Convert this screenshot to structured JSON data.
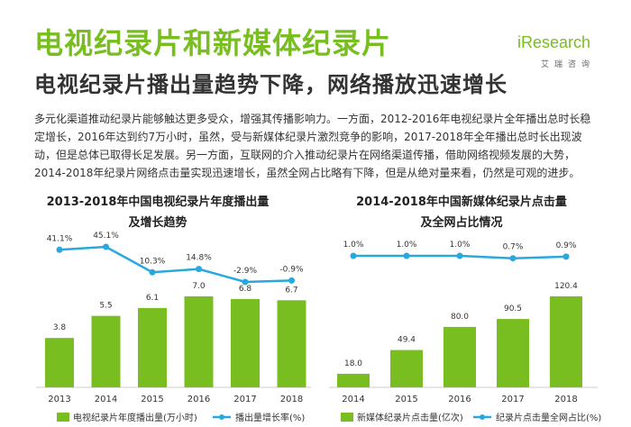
{
  "page": {
    "title": "电视纪录片和新媒体纪录片",
    "subtitle": "电视纪录片播出量趋势下降，网络播放迅速增长",
    "intro": "多元化渠道推动纪录片能够触达更多受众，增强其传播影响力。一方面，2012-2016年电视纪录片全年播出总时长稳定增长，2016年达到约7万小时，虽然，受与新媒体纪录片激烈竞争的影响，2017-2018年全年播出总时长出现波动，但是总体已取得长足发展。另一方面，互联网的介入推动纪录片在网络渠道传播，借助网络视频发展的大势，2014-2018年纪录片网络点击量实现迅速增长，虽然全网占比略有下降，但是从绝对量来看，仍然是可观的进步。"
  },
  "logo": {
    "text": "iResearch",
    "sub": "艾瑞咨询"
  },
  "colors": {
    "bar": "#78be20",
    "line": "#29a8e0",
    "title": "#78be20"
  },
  "chart_data": [
    {
      "type": "bar",
      "title_lines": [
        "2013-2018年中国电视纪录片年度播出量",
        "及增长趋势"
      ],
      "categories": [
        "2013",
        "2014",
        "2015",
        "2016",
        "2017",
        "2018"
      ],
      "series": [
        {
          "name": "电视纪录片年度播出量(万小时)",
          "kind": "bar",
          "values": [
            3.8,
            5.5,
            6.1,
            7.0,
            6.8,
            6.7
          ],
          "labels": [
            "3.8",
            "5.5",
            "6.1",
            "7.0",
            "6.8",
            "6.7"
          ]
        },
        {
          "name": "播出量增长率(%)",
          "kind": "line",
          "values": [
            41.1,
            45.1,
            10.3,
            14.8,
            -2.9,
            -0.9
          ],
          "labels": [
            "41.1%",
            "45.1%",
            "10.3%",
            "14.8%",
            "-2.9%",
            "-0.9%"
          ]
        }
      ],
      "bar_max": 7.0,
      "line_range": [
        -2.9,
        45.1
      ]
    },
    {
      "type": "bar",
      "title_lines": [
        "2014-2018年中国新媒体纪录片点击量",
        "及全网占比情况"
      ],
      "categories": [
        "2014",
        "2015",
        "2016",
        "2017",
        "2018"
      ],
      "series": [
        {
          "name": "新媒体纪录片点击量(亿次)",
          "kind": "bar",
          "values": [
            18.0,
            49.4,
            80.0,
            90.5,
            120.4
          ],
          "labels": [
            "18.0",
            "49.4",
            "80.0",
            "90.5",
            "120.4"
          ]
        },
        {
          "name": "纪录片点击量全网占比(%)",
          "kind": "line",
          "values": [
            1.0,
            1.0,
            1.0,
            0.7,
            0.9
          ],
          "labels": [
            "1.0%",
            "1.0%",
            "1.0%",
            "0.7%",
            "0.9%"
          ]
        }
      ],
      "bar_max": 120.4,
      "line_range": [
        0.0,
        1.0
      ]
    }
  ]
}
